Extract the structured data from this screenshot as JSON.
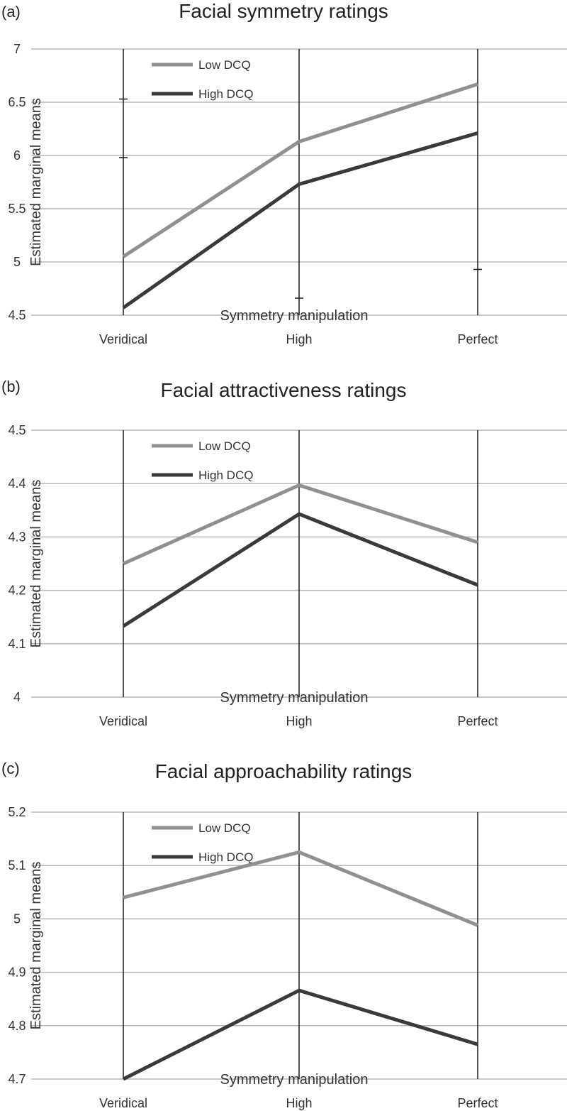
{
  "chart_data": [
    {
      "type": "line",
      "panel_label": "(a)",
      "title": "Facial symmetry ratings",
      "xlabel": "Symmetry manipulation",
      "ylabel": "Estimated marginal means",
      "categories": [
        "Veridical",
        "High",
        "Perfect"
      ],
      "ylim": [
        4.5,
        7
      ],
      "yticks": [
        "4.5",
        "5",
        "5.5",
        "6",
        "6.5",
        "7"
      ],
      "series": [
        {
          "name": "Low DCQ",
          "values": [
            5.05,
            6.13,
            6.67
          ],
          "color": "#909090"
        },
        {
          "name": "High DCQ",
          "values": [
            4.57,
            5.73,
            6.21
          ],
          "color": "#3a3a3a"
        }
      ],
      "error_caps": [
        {
          "category": "Veridical",
          "values": [
            6.53,
            5.98
          ]
        },
        {
          "category": "High",
          "values": [
            4.66
          ]
        },
        {
          "category": "Perfect",
          "values": [
            4.93
          ]
        }
      ]
    },
    {
      "type": "line",
      "panel_label": "(b)",
      "title": "Facial attractiveness ratings",
      "xlabel": "Symmetry manipulation",
      "ylabel": "Estimated marginal means",
      "categories": [
        "Veridical",
        "High",
        "Perfect"
      ],
      "ylim": [
        4,
        4.5
      ],
      "yticks": [
        "4",
        "4.1",
        "4.2",
        "4.3",
        "4.4",
        "4.5"
      ],
      "series": [
        {
          "name": "Low DCQ",
          "values": [
            4.25,
            4.397,
            4.29
          ],
          "color": "#909090"
        },
        {
          "name": "High DCQ",
          "values": [
            4.133,
            4.343,
            4.21
          ],
          "color": "#3a3a3a"
        }
      ],
      "error_caps": []
    },
    {
      "type": "line",
      "panel_label": "(c)",
      "title": "Facial approachability ratings",
      "xlabel": "Symmetry manipulation",
      "ylabel": "Estimated marginal means",
      "categories": [
        "Veridical",
        "High",
        "Perfect"
      ],
      "ylim": [
        4.7,
        5.2
      ],
      "yticks": [
        "4.7",
        "4.8",
        "4.9",
        "5",
        "5.1",
        "5.2"
      ],
      "series": [
        {
          "name": "Low DCQ",
          "values": [
            5.04,
            5.125,
            4.988
          ],
          "color": "#909090"
        },
        {
          "name": "High DCQ",
          "values": [
            4.7,
            4.866,
            4.765
          ],
          "color": "#3a3a3a"
        }
      ],
      "error_caps": []
    }
  ]
}
